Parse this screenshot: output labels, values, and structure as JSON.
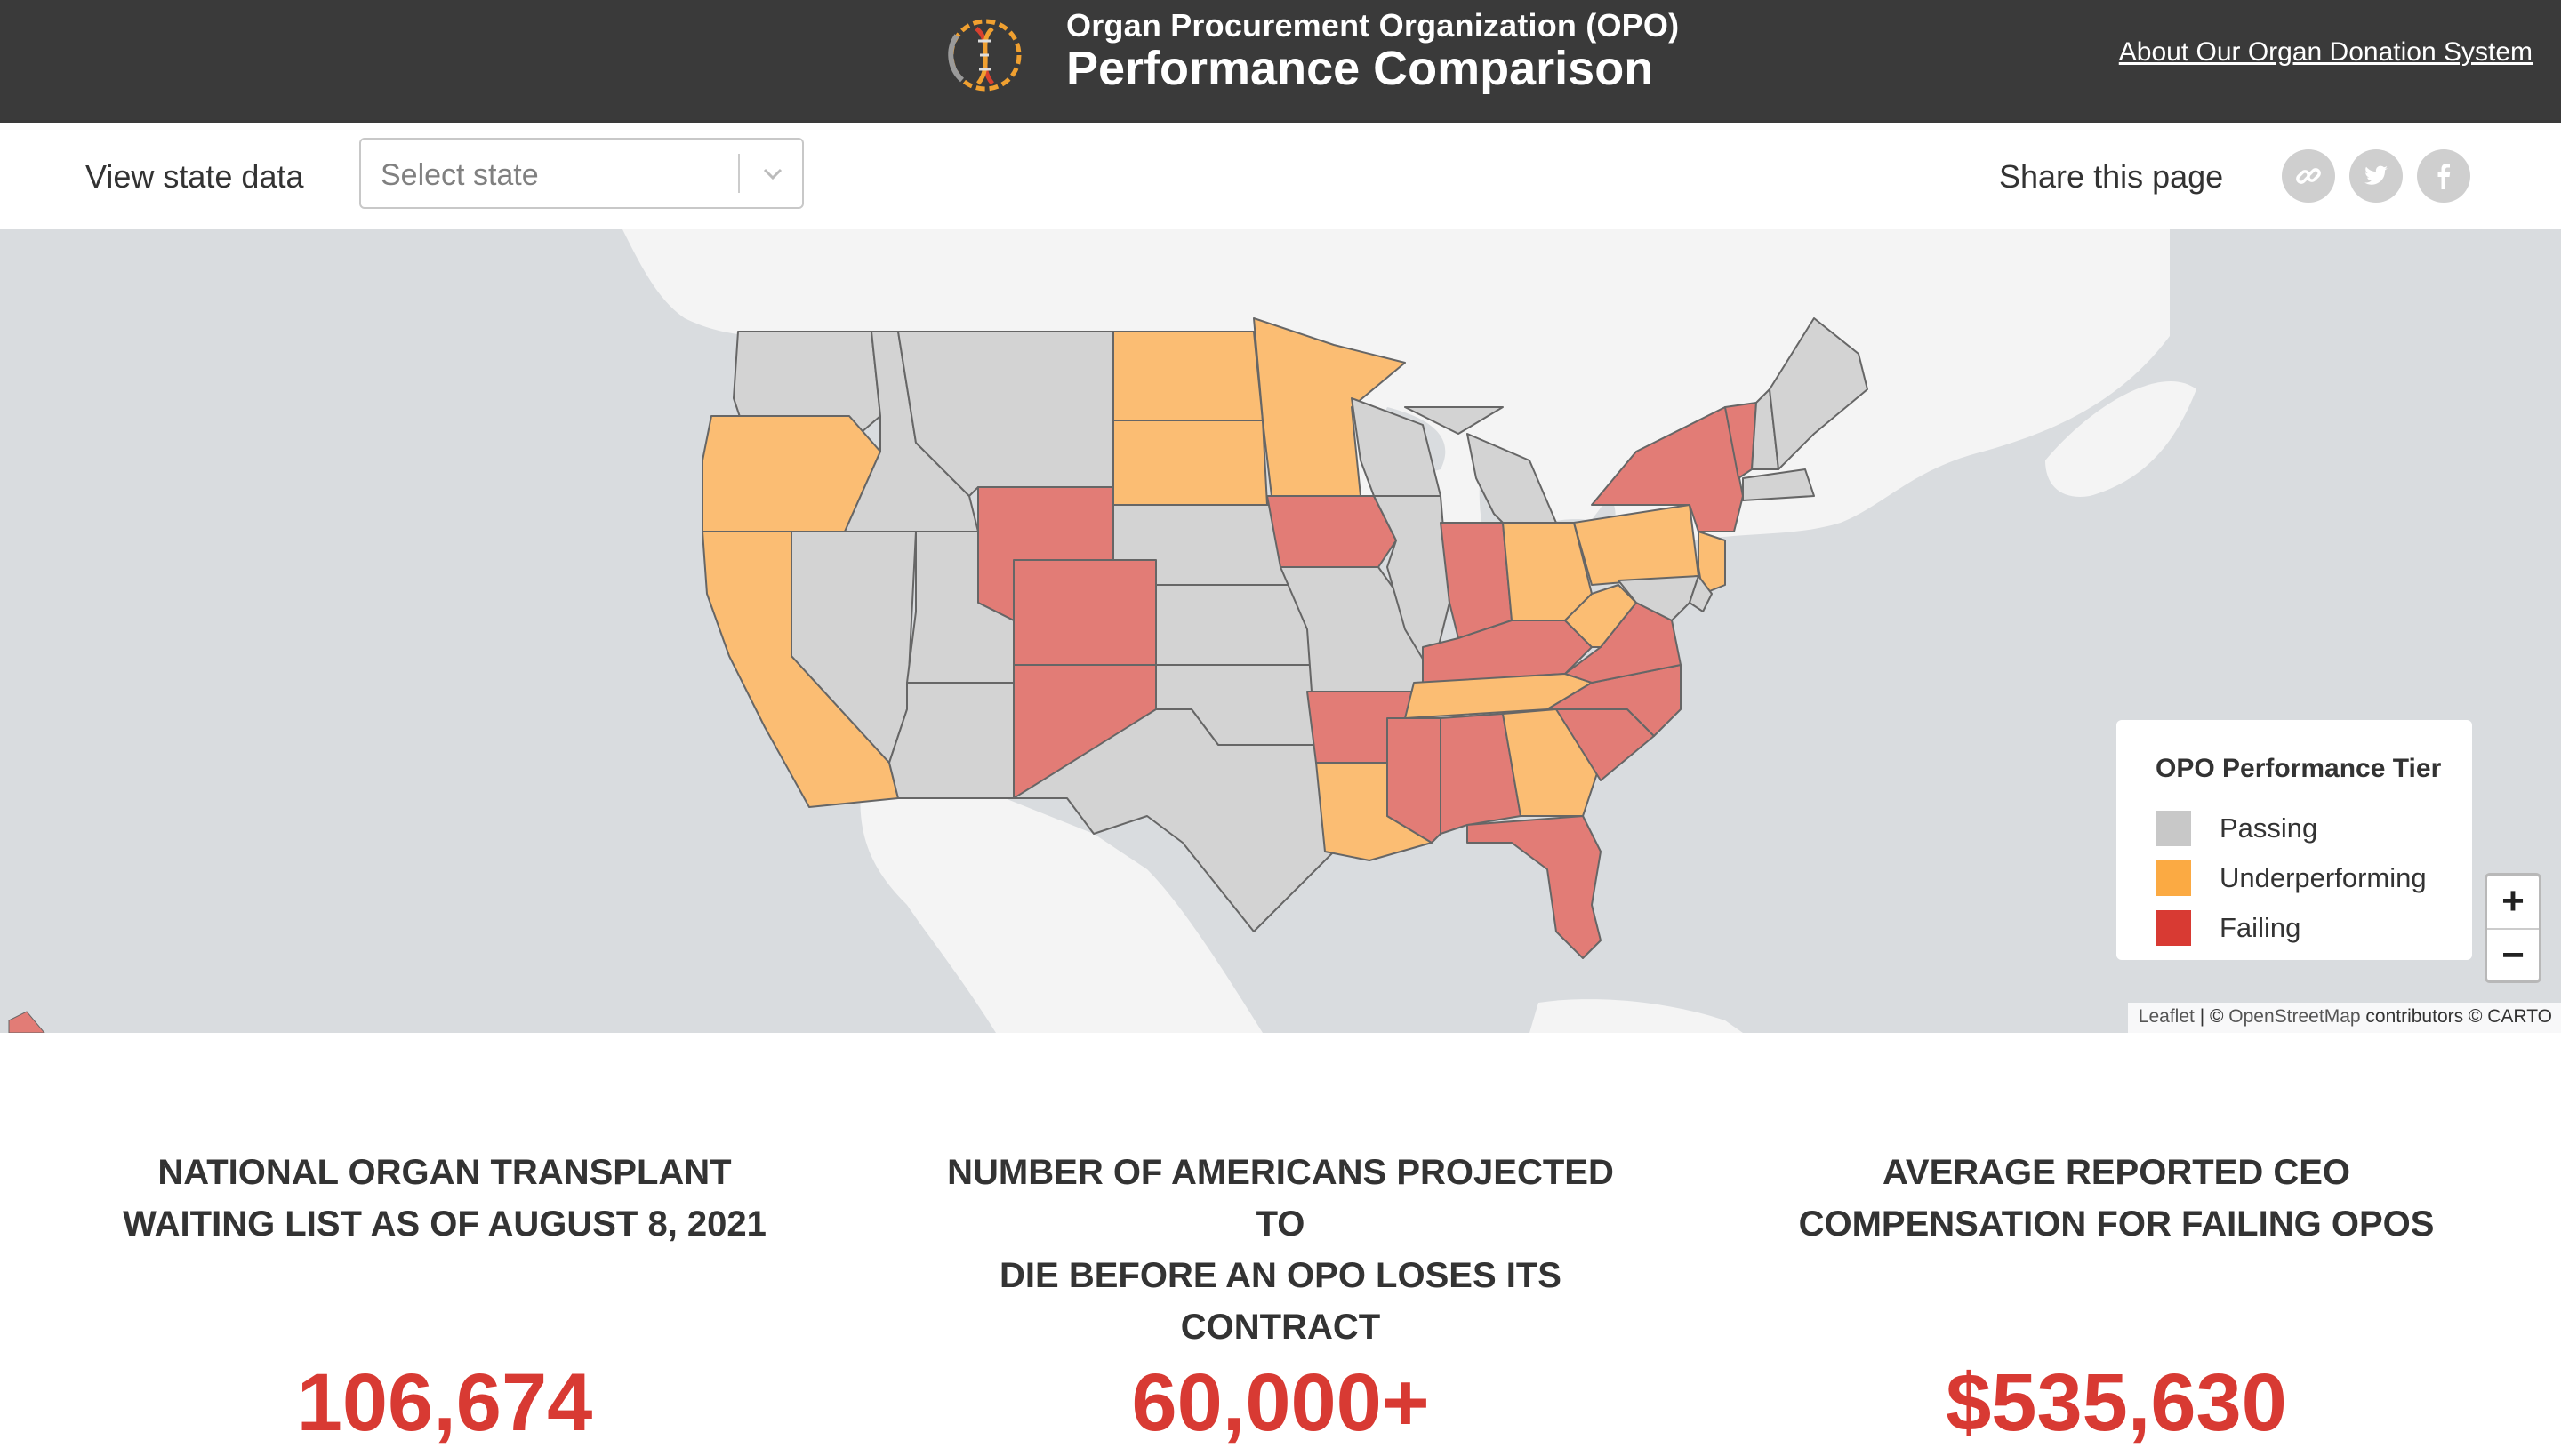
{
  "header": {
    "title_small": "Organ Procurement Organization (OPO)",
    "title_big": "Performance Comparison",
    "about_link": "About Our Organ Donation System",
    "logo_icon": "dna-ring-logo-icon"
  },
  "toolbar": {
    "view_label": "View state data",
    "select_placeholder": "Select state",
    "share_label": "Share this page",
    "share_icons": [
      "link-icon",
      "twitter-icon",
      "facebook-icon"
    ]
  },
  "map": {
    "tiers": {
      "passing": "#d3d3d3",
      "underperforming": "#fbbd73",
      "failing": "#e27c76"
    },
    "legend": {
      "title": "OPO Performance Tier",
      "items": [
        {
          "label": "Passing",
          "color": "#c8c8c8"
        },
        {
          "label": "Underperforming",
          "color": "#fbaa43"
        },
        {
          "label": "Failing",
          "color": "#d83a33"
        }
      ]
    },
    "zoom_in": "+",
    "zoom_out": "−",
    "attribution": {
      "leaflet": "Leaflet",
      "sep": " | © ",
      "osm": "OpenStreetMap",
      "contributors": " contributors © CARTO"
    },
    "states": {
      "WA": "passing",
      "OR": "underperforming",
      "CA": "underperforming",
      "NV": "passing",
      "ID": "passing",
      "MT": "passing",
      "WY": "failing",
      "UT": "passing",
      "AZ": "passing",
      "CO": "failing",
      "NM": "failing",
      "ND": "underperforming",
      "SD": "underperforming",
      "NE": "passing",
      "KS": "passing",
      "OK": "passing",
      "TX": "passing",
      "MN": "underperforming",
      "IA": "failing",
      "MO": "passing",
      "AR": "failing",
      "LA": "underperforming",
      "WI": "passing",
      "IL": "passing",
      "MS": "failing",
      "MI": "passing",
      "IN": "failing",
      "KY": "failing",
      "TN": "underperforming",
      "AL": "failing",
      "OH": "underperforming",
      "GA": "underperforming",
      "FL": "failing",
      "SC": "failing",
      "NC": "failing",
      "VA": "failing",
      "WV": "underperforming",
      "PA": "underperforming",
      "NY": "failing",
      "VT": "failing",
      "NH": "passing",
      "ME": "passing",
      "MA": "passing",
      "NJ": "underperforming",
      "MD": "passing",
      "DE": "passing"
    }
  },
  "stats": [
    {
      "heading": [
        "NATIONAL ORGAN TRANSPLANT",
        "WAITING LIST AS OF AUGUST 8, 2021"
      ],
      "value": "106,674"
    },
    {
      "heading": [
        "NUMBER OF AMERICANS PROJECTED TO",
        "DIE BEFORE AN OPO LOSES ITS",
        "CONTRACT"
      ],
      "value": "60,000+"
    },
    {
      "heading": [
        "AVERAGE REPORTED CEO",
        "COMPENSATION FOR FAILING OPOS"
      ],
      "value": "$535,630"
    }
  ]
}
